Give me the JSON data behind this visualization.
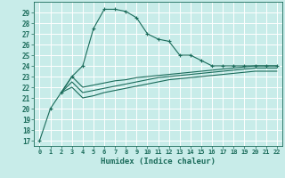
{
  "xlabel": "Humidex (Indice chaleur)",
  "bg_color": "#c8ece9",
  "grid_color": "#ffffff",
  "line_color": "#1a6b5a",
  "xlim": [
    -0.5,
    22.5
  ],
  "ylim": [
    16.5,
    30.0
  ],
  "yticks": [
    17,
    18,
    19,
    20,
    21,
    22,
    23,
    24,
    25,
    26,
    27,
    28,
    29
  ],
  "xticks": [
    0,
    1,
    2,
    3,
    4,
    5,
    6,
    7,
    8,
    9,
    10,
    11,
    12,
    13,
    14,
    15,
    16,
    17,
    18,
    19,
    20,
    21,
    22
  ],
  "series1_x": [
    0,
    1,
    2,
    3,
    4,
    5,
    6,
    7,
    8,
    9,
    10,
    11,
    12,
    13,
    14,
    15,
    16,
    17,
    18,
    19,
    20,
    21,
    22
  ],
  "series1_y": [
    17,
    20,
    21.5,
    23,
    24,
    27.5,
    29.3,
    29.3,
    29.1,
    28.5,
    27.0,
    26.5,
    26.3,
    25.0,
    25.0,
    24.5,
    24.0,
    24.0,
    24.0,
    24.0,
    24.0,
    24.0,
    24.0
  ],
  "series2_x": [
    2,
    3,
    4,
    5,
    6,
    7,
    8,
    9,
    10,
    11,
    12,
    13,
    14,
    15,
    16,
    17,
    18,
    19,
    20,
    21,
    22
  ],
  "series2_y": [
    21.5,
    23.0,
    22.0,
    22.2,
    22.4,
    22.6,
    22.7,
    22.9,
    23.0,
    23.1,
    23.2,
    23.3,
    23.4,
    23.5,
    23.6,
    23.7,
    23.8,
    23.9,
    24.0,
    24.0,
    24.0
  ],
  "series3_x": [
    2,
    3,
    4,
    5,
    6,
    7,
    8,
    9,
    10,
    11,
    12,
    13,
    14,
    15,
    16,
    17,
    18,
    19,
    20,
    21,
    22
  ],
  "series3_y": [
    21.5,
    22.5,
    21.5,
    21.7,
    21.9,
    22.1,
    22.3,
    22.5,
    22.7,
    22.9,
    23.0,
    23.1,
    23.2,
    23.3,
    23.4,
    23.5,
    23.6,
    23.7,
    23.8,
    23.8,
    23.8
  ],
  "series4_x": [
    2,
    3,
    4,
    5,
    6,
    7,
    8,
    9,
    10,
    11,
    12,
    13,
    14,
    15,
    16,
    17,
    18,
    19,
    20,
    21,
    22
  ],
  "series4_y": [
    21.5,
    22.0,
    21.0,
    21.2,
    21.5,
    21.7,
    21.9,
    22.1,
    22.3,
    22.5,
    22.7,
    22.8,
    22.9,
    23.0,
    23.1,
    23.2,
    23.3,
    23.4,
    23.5,
    23.5,
    23.5
  ]
}
